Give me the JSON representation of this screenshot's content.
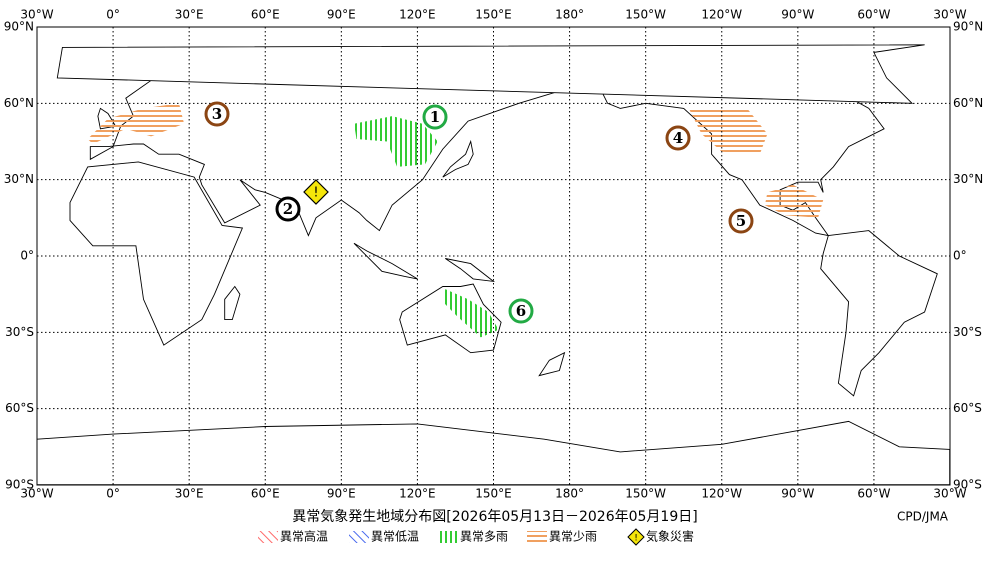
{
  "map": {
    "lon_labels": [
      "30°W",
      "0°",
      "30°E",
      "60°E",
      "90°E",
      "120°E",
      "150°E",
      "180°",
      "150°W",
      "120°W",
      "90°W",
      "60°W",
      "30°W"
    ],
    "lat_labels": [
      "90°N",
      "60°N",
      "30°N",
      "0°",
      "30°S",
      "60°S",
      "90°S"
    ]
  },
  "markers": [
    "1",
    "2",
    "3",
    "4",
    "5",
    "6"
  ],
  "hazard_symbol": "!",
  "title": "異常気象発生地域分布図[2026年05月13日－2026年05月19日]",
  "credit": "CPD/JMA",
  "legend": [
    "異常高温",
    "異常低温",
    "異常多雨",
    "異常少雨",
    "気象災害"
  ]
}
